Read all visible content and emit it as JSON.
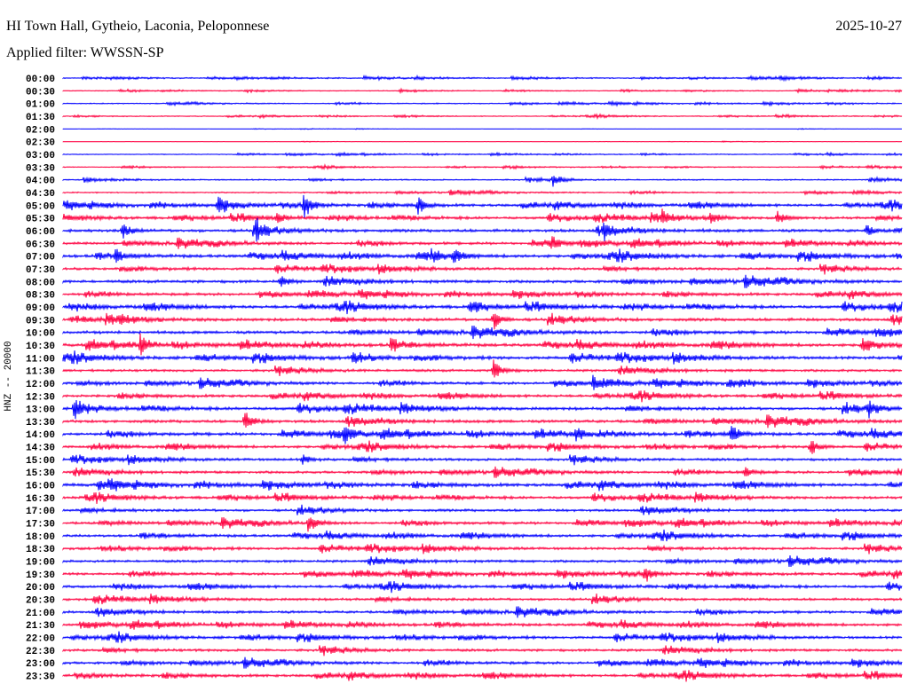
{
  "header": {
    "station": "HI Town Hall, Gytheio, Laconia, Peloponnese",
    "date": "2025-10-27",
    "filter": "Applied filter: WWSSN-SP"
  },
  "chart_data": {
    "type": "line",
    "subtype": "helicorder",
    "title": "HI Town Hall, Gytheio, Laconia, Peloponnese",
    "ylabel": "HNZ -- 20000",
    "row_minutes": 30,
    "colors": [
      "#0000ff",
      "#ff0040"
    ],
    "row_labels": [
      "00:00",
      "00:30",
      "01:00",
      "01:30",
      "02:00",
      "02:30",
      "03:00",
      "03:30",
      "04:00",
      "04:30",
      "05:00",
      "05:30",
      "06:00",
      "06:30",
      "07:00",
      "07:30",
      "08:00",
      "08:30",
      "09:00",
      "09:30",
      "10:00",
      "10:30",
      "11:00",
      "11:30",
      "12:00",
      "12:30",
      "13:00",
      "13:30",
      "14:00",
      "14:30",
      "15:00",
      "15:30",
      "16:00",
      "16:30",
      "17:00",
      "17:30",
      "18:00",
      "18:30",
      "19:00",
      "19:30",
      "20:00",
      "20:30",
      "21:00",
      "21:30",
      "22:00",
      "22:30",
      "23:00",
      "23:30"
    ],
    "noise_level": [
      1.2,
      1,
      1.2,
      1,
      0.3,
      0.3,
      1,
      1,
      1.5,
      1.5,
      3,
      3,
      3.5,
      3,
      3.5,
      3,
      3.5,
      3,
      3.5,
      3.5,
      3.5,
      3.5,
      3.5,
      3,
      3,
      3,
      3.5,
      3.5,
      3.5,
      3,
      3,
      3,
      3.5,
      3,
      3,
      3,
      3,
      3,
      3,
      3,
      3,
      3,
      3,
      3,
      3,
      3,
      3,
      3
    ],
    "events": [
      {
        "row": 8,
        "minute": 17.52,
        "amp": 7
      },
      {
        "row": 10,
        "minute": 5.52,
        "amp": 8
      },
      {
        "row": 10,
        "minute": 8.6,
        "amp": 14
      },
      {
        "row": 10,
        "minute": 12.67,
        "amp": 10
      },
      {
        "row": 11,
        "minute": 7.59,
        "amp": 6
      },
      {
        "row": 11,
        "minute": 21.4,
        "amp": 8
      },
      {
        "row": 11,
        "minute": 23.14,
        "amp": 8
      },
      {
        "row": 11,
        "minute": 25.52,
        "amp": 9
      },
      {
        "row": 12,
        "minute": 2.1,
        "amp": 10
      },
      {
        "row": 12,
        "minute": 6.86,
        "amp": 10
      },
      {
        "row": 12,
        "minute": 19.33,
        "amp": 7
      },
      {
        "row": 12,
        "minute": 28.7,
        "amp": 7
      },
      {
        "row": 13,
        "minute": 17.43,
        "amp": 7
      },
      {
        "row": 14,
        "minute": 1.87,
        "amp": 6
      },
      {
        "row": 14,
        "minute": 13.14,
        "amp": 6
      },
      {
        "row": 14,
        "minute": 13.94,
        "amp": 9
      },
      {
        "row": 16,
        "minute": 7.75,
        "amp": 7
      },
      {
        "row": 18,
        "minute": 14.57,
        "amp": 6
      },
      {
        "row": 19,
        "minute": 2.03,
        "amp": 6
      },
      {
        "row": 19,
        "minute": 15.37,
        "amp": 12
      },
      {
        "row": 21,
        "minute": 2.76,
        "amp": 12
      },
      {
        "row": 21,
        "minute": 11.71,
        "amp": 6
      },
      {
        "row": 21,
        "minute": 28.54,
        "amp": 10
      },
      {
        "row": 22,
        "minute": 10.38,
        "amp": 6
      },
      {
        "row": 23,
        "minute": 15.37,
        "amp": 14
      },
      {
        "row": 24,
        "minute": 18.95,
        "amp": 8
      },
      {
        "row": 24,
        "minute": 23.78,
        "amp": 8
      },
      {
        "row": 26,
        "minute": 0.38,
        "amp": 14
      },
      {
        "row": 26,
        "minute": 28.79,
        "amp": 9
      },
      {
        "row": 27,
        "minute": 6.48,
        "amp": 12
      },
      {
        "row": 28,
        "minute": 10.03,
        "amp": 8
      },
      {
        "row": 28,
        "minute": 18.32,
        "amp": 8
      },
      {
        "row": 28,
        "minute": 23.87,
        "amp": 10
      },
      {
        "row": 29,
        "minute": 26.7,
        "amp": 11
      },
      {
        "row": 30,
        "minute": 8.54,
        "amp": 6
      },
      {
        "row": 31,
        "minute": 24.35,
        "amp": 7
      },
      {
        "row": 32,
        "minute": 1.24,
        "amp": 8
      },
      {
        "row": 35,
        "minute": 8.76,
        "amp": 10
      },
      {
        "row": 39,
        "minute": 20.79,
        "amp": 9
      }
    ]
  }
}
